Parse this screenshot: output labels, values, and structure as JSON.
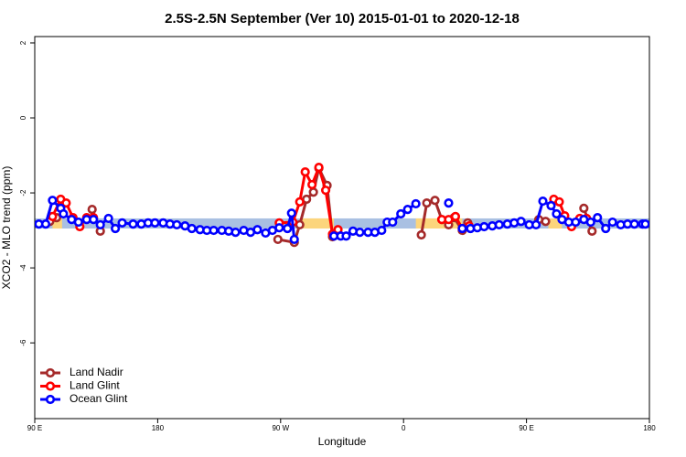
{
  "chart_data": {
    "type": "line",
    "title": "2.5S-2.5N September (Ver 10)   2015-01-01 to 2020-12-18",
    "xlabel": "Longitude",
    "ylabel": "XCO2 - MLO trend (ppm)",
    "xlim": [
      90,
      540
    ],
    "ylim": [
      -8.02,
      2.17
    ],
    "xticks": [
      {
        "value": 90,
        "label": "90 E"
      },
      {
        "value": 180,
        "label": "180"
      },
      {
        "value": 270,
        "label": "90 W"
      },
      {
        "value": 360,
        "label": "0"
      },
      {
        "value": 450,
        "label": "90 E"
      },
      {
        "value": 540,
        "label": "180"
      }
    ],
    "yticks": [
      2,
      0,
      -2,
      -4,
      -6
    ],
    "legend": "bottom-left",
    "band_ylim": [
      -2.95,
      -2.68
    ],
    "bands": [
      {
        "from": 90,
        "to": 540,
        "color": "#a9c0e2"
      },
      {
        "from": 103,
        "to": 110,
        "color": "#fcd57c"
      },
      {
        "from": 285,
        "to": 309,
        "color": "#fcd57c"
      },
      {
        "from": 369,
        "to": 403,
        "color": "#fcd57c"
      },
      {
        "from": 466,
        "to": 476,
        "color": "#fcd57c"
      }
    ],
    "series": [
      {
        "name": "Land Nadir",
        "color": "#a52a2a",
        "x": [
          101,
          106,
          119,
          132,
          138,
          200,
          268,
          280,
          284,
          289,
          294,
          298,
          304,
          308,
          340,
          373,
          377,
          383,
          388,
          393,
          397,
          403,
          407,
          430,
          459,
          464,
          480,
          492,
          498
        ],
        "values": [
          -2.76,
          -2.66,
          null,
          -2.44,
          -3.02,
          null,
          -3.24,
          -3.32,
          -2.85,
          -2.17,
          -1.98,
          -1.34,
          -1.8,
          -3.17,
          null,
          -3.12,
          -2.27,
          -2.2,
          -2.71,
          -2.85,
          -2.66,
          -3.0,
          -2.8,
          null,
          -2.71,
          -2.76,
          null,
          -2.41,
          -3.02
        ]
      },
      {
        "name": "Land Glint",
        "color": "#ff0000",
        "x": [
          103,
          109,
          113,
          118,
          123,
          128,
          133,
          200,
          269,
          279,
          284,
          288,
          293,
          298,
          303,
          308,
          312,
          350,
          388,
          393,
          398,
          403,
          408,
          440,
          470,
          474,
          478,
          483,
          489,
          494
        ],
        "values": [
          -2.63,
          -2.17,
          -2.27,
          -2.66,
          -2.9,
          -2.66,
          -2.66,
          null,
          -2.8,
          -2.78,
          -2.24,
          -1.44,
          -1.78,
          -1.32,
          -1.93,
          -3.1,
          -2.98,
          null,
          -2.71,
          -2.71,
          -2.63,
          -2.95,
          -2.88,
          null,
          -2.17,
          -2.24,
          -2.61,
          -2.9,
          -2.68,
          -2.68
        ]
      },
      {
        "name": "Ocean Glint",
        "color": "#0000ff",
        "x": [
          93,
          98,
          103,
          109,
          111,
          117,
          122,
          128,
          133,
          138,
          144,
          149,
          154,
          162,
          168,
          173,
          178,
          184,
          189,
          194,
          200,
          205,
          211,
          216,
          221,
          227,
          232,
          237,
          243,
          248,
          253,
          259,
          264,
          269,
          275,
          278,
          280,
          295,
          309,
          314,
          318,
          323,
          328,
          334,
          339,
          344,
          348,
          352,
          358,
          363,
          369,
          381,
          393,
          398,
          403,
          409,
          414,
          419,
          425,
          430,
          436,
          441,
          446,
          452,
          457,
          462,
          468,
          472,
          476,
          481,
          486,
          492,
          497,
          502,
          508,
          513,
          519,
          524,
          529,
          535,
          537
        ],
        "values": [
          -2.83,
          -2.83,
          -2.2,
          -2.41,
          -2.56,
          -2.71,
          -2.78,
          -2.71,
          -2.71,
          -2.85,
          -2.68,
          -2.95,
          -2.8,
          -2.83,
          -2.83,
          -2.8,
          -2.8,
          -2.8,
          -2.83,
          -2.85,
          -2.88,
          -2.95,
          -2.98,
          -3.0,
          -3.0,
          -3.0,
          -3.02,
          -3.05,
          -3.0,
          -3.05,
          -2.98,
          -3.07,
          -3.0,
          -2.93,
          -2.95,
          -2.54,
          -3.24,
          null,
          -3.15,
          -3.15,
          -3.15,
          -3.02,
          -3.05,
          -3.05,
          -3.05,
          -3.0,
          -2.78,
          -2.78,
          -2.56,
          -2.44,
          -2.29,
          null,
          -2.27,
          null,
          -2.95,
          -2.95,
          -2.93,
          -2.9,
          -2.88,
          -2.85,
          -2.83,
          -2.8,
          -2.76,
          -2.85,
          -2.85,
          -2.22,
          -2.34,
          -2.56,
          -2.71,
          -2.78,
          -2.78,
          -2.71,
          -2.78,
          -2.66,
          -2.95,
          -2.78,
          -2.85,
          -2.83,
          -2.83,
          -2.83,
          -2.83
        ]
      }
    ]
  }
}
